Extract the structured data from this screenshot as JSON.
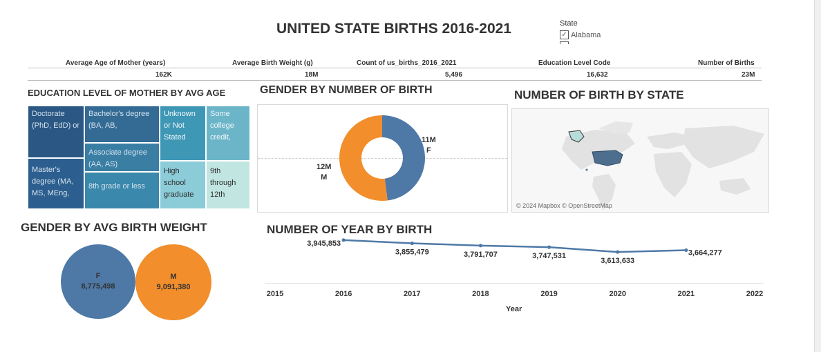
{
  "title": "UNITED STATE BIRTHS 2016-2021",
  "filter": {
    "label": "State",
    "selected": "Alabama"
  },
  "kpis": [
    {
      "label": "Average Age of Mother (years)",
      "value": "162K"
    },
    {
      "label": "Average Birth Weight (g)",
      "value": "18M"
    },
    {
      "label": "Count of us_births_2016_2021",
      "value": "5,496"
    },
    {
      "label": "Education Level Code",
      "value": "16,632"
    },
    {
      "label": "Number of Births",
      "value": "23M"
    }
  ],
  "colors": {
    "blue": "#4e79a7",
    "orange": "#f28e2b",
    "map_land": "#e4e4e4",
    "map_highlight": "#4e6e8e"
  },
  "chart_data": [
    {
      "type": "treemap",
      "title": "EDUCATION LEVEL OF MOTHER  BY AVG AGE",
      "categories": [
        "Doctorate (PhD, EdD) or",
        "Master's degree (MA, MS, MEng,",
        "Bachelor's degree (BA, AB,",
        "Associate degree (AA, AS)",
        "8th grade or less",
        "Unknown or Not Stated",
        "Some college credit,",
        "High school graduate",
        "9th through 12th"
      ]
    },
    {
      "type": "pie",
      "title": "GENDER BY NUMBER OF BIRTH",
      "categories": [
        "F",
        "M"
      ],
      "labels": [
        "11M",
        "12M"
      ],
      "values": [
        0.48,
        0.52
      ]
    },
    {
      "type": "map",
      "title": "NUMBER OF BIRTH BY STATE",
      "attribution": "© 2024 Mapbox © OpenStreetMap"
    },
    {
      "type": "bubble",
      "title": "GENDER BY AVG BIRTH WEIGHT",
      "categories": [
        "F",
        "M"
      ],
      "values": [
        8775498,
        9091380
      ],
      "labels": [
        "8,775,498",
        "9,091,380"
      ]
    },
    {
      "type": "line",
      "title": "NUMBER OF YEAR BY BIRTH",
      "xlabel": "Year",
      "x": [
        2016,
        2017,
        2018,
        2019,
        2020,
        2021
      ],
      "values": [
        3945853,
        3855479,
        3791707,
        3747531,
        3613633,
        3664277
      ],
      "labels": [
        "3,945,853",
        "3,855,479",
        "3,791,707",
        "3,747,531",
        "3,613,633",
        "3,664,277"
      ],
      "xticks": [
        "2015",
        "2016",
        "2017",
        "2018",
        "2019",
        "2020",
        "2021",
        "2022"
      ],
      "xlim": [
        2015,
        2022
      ]
    }
  ]
}
